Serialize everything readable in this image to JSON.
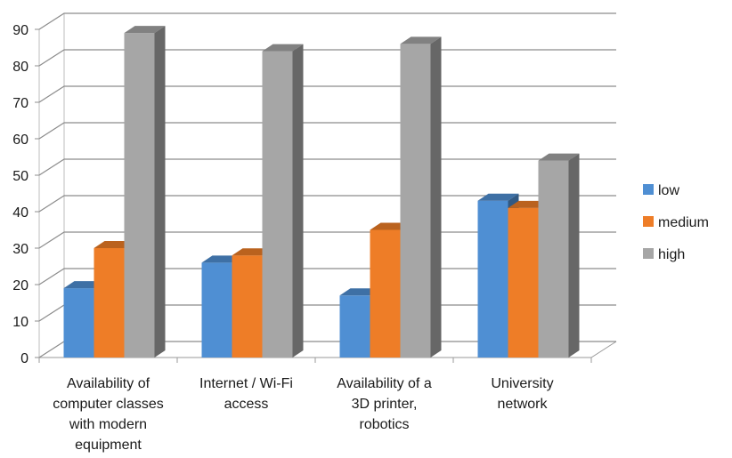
{
  "chart_data": {
    "type": "bar",
    "style": "3d-clustered-column",
    "title": "",
    "xlabel": "",
    "ylabel": "",
    "ylim": [
      0,
      90
    ],
    "yticks": [
      0,
      10,
      20,
      30,
      40,
      50,
      60,
      70,
      80,
      90
    ],
    "grid": true,
    "legend_position": "right",
    "categories": [
      [
        "Availability of",
        "computer classes",
        "with modern",
        "equipment"
      ],
      [
        "Internet / Wi-Fi",
        "access"
      ],
      [
        "Availability of a",
        "3D printer,",
        "robotics"
      ],
      [
        "University",
        "network"
      ]
    ],
    "series": [
      {
        "name": "low",
        "color": "#4f8fd3",
        "values": [
          19,
          26,
          17,
          43
        ]
      },
      {
        "name": "medium",
        "color": "#ee7d27",
        "values": [
          30,
          28,
          35,
          41
        ]
      },
      {
        "name": "high",
        "color": "#a6a6a6",
        "values": [
          89,
          84,
          86,
          54
        ]
      }
    ]
  }
}
